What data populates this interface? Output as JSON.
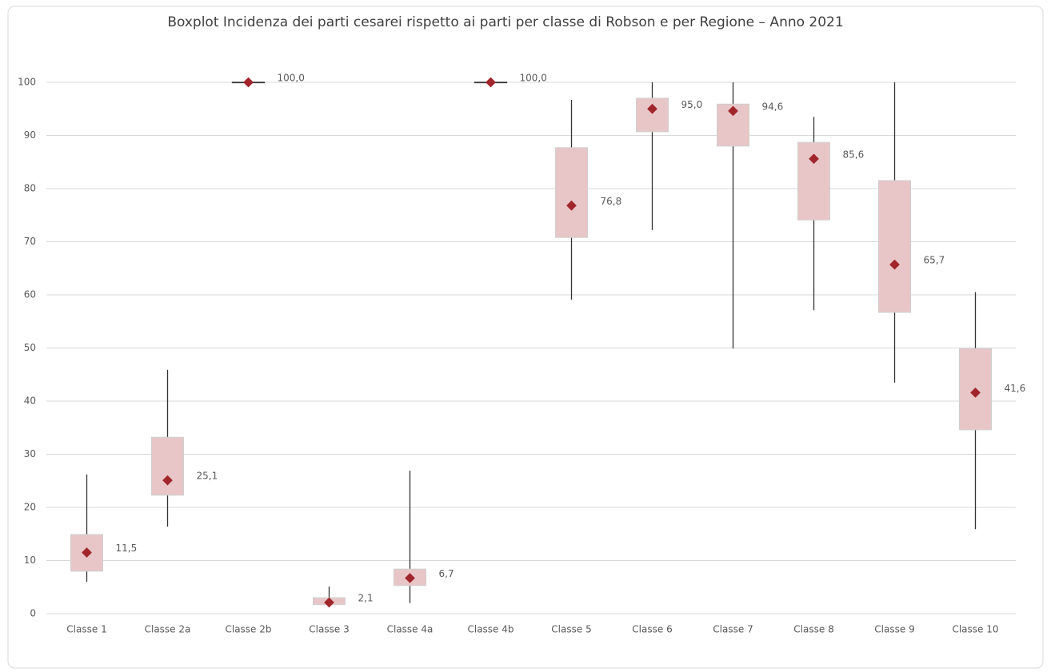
{
  "chart_data": {
    "type": "box",
    "title": "Boxplot Incidenza dei parti cesarei rispetto ai parti  per classe di Robson e per Regione – Anno 2021",
    "categories": [
      "Classe 1",
      "Classe 2a",
      "Classe 2b",
      "Classe 3",
      "Classe 4a",
      "Classe 4b",
      "Classe 5",
      "Classe 6",
      "Classe 7",
      "Classe 8",
      "Classe 9",
      "Classe 10"
    ],
    "min": [
      6.0,
      16.4,
      100,
      1.7,
      2.0,
      100,
      59.1,
      72.2,
      49.9,
      57.1,
      43.5,
      15.9
    ],
    "q1": [
      8.0,
      22.3,
      100,
      1.7,
      5.3,
      100,
      70.8,
      90.7,
      88.0,
      74.1,
      56.7,
      34.6
    ],
    "q3": [
      14.9,
      33.2,
      100,
      3.0,
      8.4,
      100,
      87.7,
      97.0,
      95.9,
      88.7,
      81.5,
      49.9
    ],
    "max": [
      26.2,
      45.9,
      100,
      5.1,
      26.9,
      100,
      96.7,
      100,
      100,
      93.5,
      100,
      60.5
    ],
    "values": [
      11.5,
      25.1,
      100.0,
      2.1,
      6.7,
      100.0,
      76.8,
      95.0,
      94.6,
      85.6,
      65.7,
      41.6
    ],
    "value_labels": [
      "11,5",
      "25,1",
      "100,0",
      "2,1",
      "6,7",
      "100,0",
      "76,8",
      "95,0",
      "94,6",
      "85,6",
      "65,7",
      "41,6"
    ],
    "box_color": "#e8c6c8",
    "color": "#a0262b",
    "whisker_color": "#333333",
    "ylim": [
      0,
      100
    ],
    "yticks": [
      0,
      10,
      20,
      30,
      40,
      50,
      60,
      70,
      80,
      90,
      100
    ],
    "grid": true
  }
}
